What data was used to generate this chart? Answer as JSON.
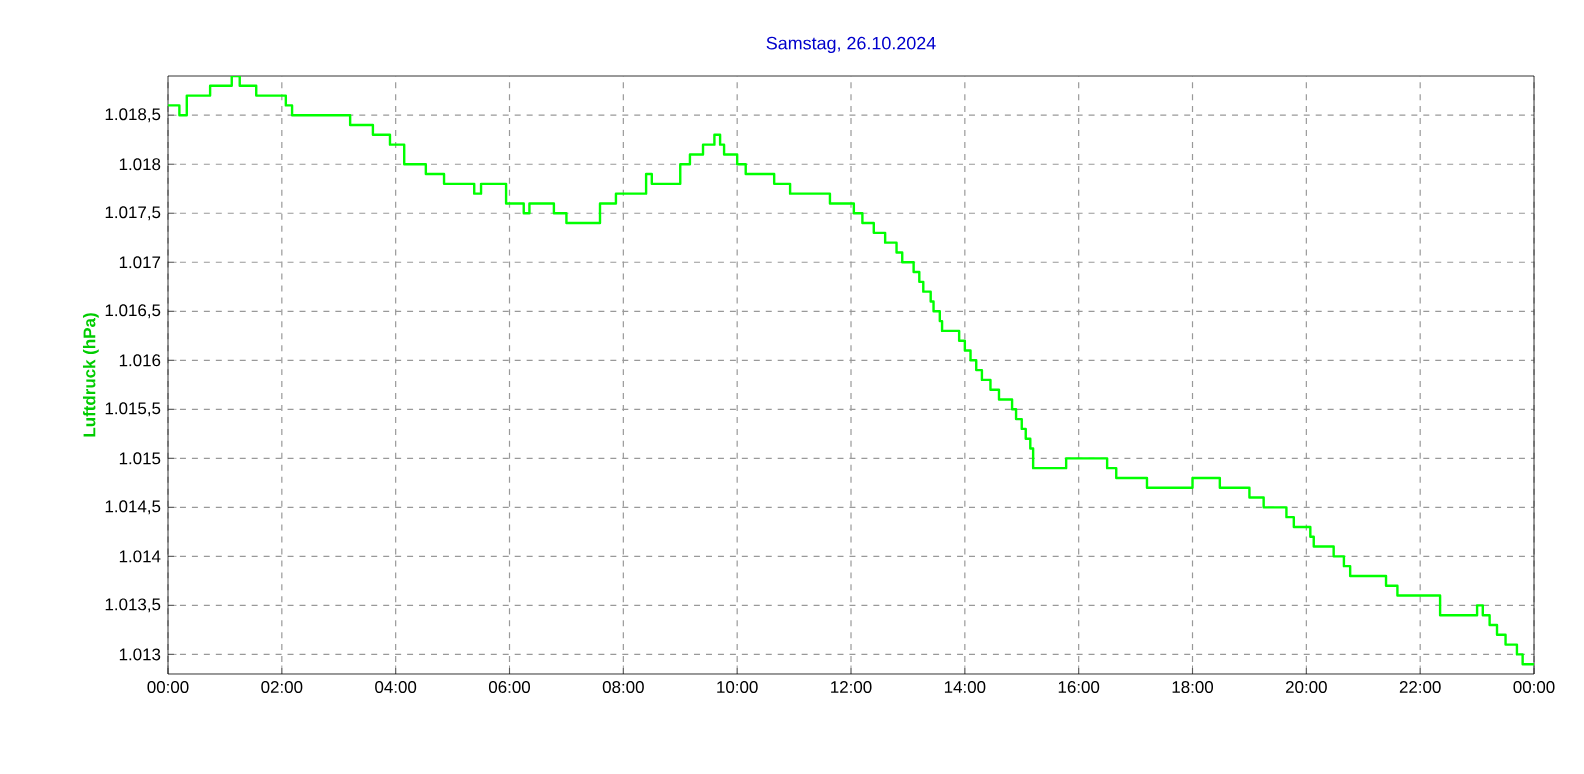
{
  "chart_data": {
    "type": "step",
    "title": "Samstag, 26.10.2024",
    "ylabel": "Luftdruck  (hPa)",
    "x": [
      0,
      0.2,
      0.33,
      0.74,
      1.12,
      1.26,
      1.55,
      2.07,
      2.18,
      3.2,
      3.6,
      3.9,
      4.15,
      4.53,
      4.85,
      5.38,
      5.5,
      5.73,
      5.94,
      6.25,
      6.35,
      6.78,
      7.0,
      7.59,
      7.87,
      8.4,
      8.5,
      9.0,
      9.17,
      9.4,
      9.6,
      9.7,
      9.77,
      10.0,
      10.15,
      10.65,
      10.93,
      11.63,
      12.05,
      12.2,
      12.4,
      12.6,
      12.8,
      12.9,
      13.1,
      13.2,
      13.27,
      13.4,
      13.45,
      13.56,
      13.6,
      13.9,
      14.0,
      14.1,
      14.2,
      14.3,
      14.45,
      14.6,
      14.83,
      14.9,
      15.0,
      15.07,
      15.15,
      15.2,
      15.78,
      16.5,
      16.66,
      17.2,
      18.0,
      18.48,
      19.0,
      19.25,
      19.65,
      19.78,
      20.07,
      20.13,
      20.48,
      20.66,
      20.77,
      21.4,
      21.6,
      22.35,
      23.0,
      23.1,
      23.22,
      23.35,
      23.5,
      23.7,
      23.8,
      24.0
    ],
    "series": [
      {
        "color": "#00ff00",
        "values": [
          1018.6,
          1018.5,
          1018.7,
          1018.8,
          1018.9,
          1018.8,
          1018.7,
          1018.6,
          1018.5,
          1018.4,
          1018.3,
          1018.2,
          1018.0,
          1017.9,
          1017.8,
          1017.7,
          1017.8,
          1017.8,
          1017.6,
          1017.5,
          1017.6,
          1017.5,
          1017.4,
          1017.6,
          1017.7,
          1017.9,
          1017.8,
          1018.0,
          1018.1,
          1018.2,
          1018.3,
          1018.2,
          1018.1,
          1018.0,
          1017.9,
          1017.8,
          1017.7,
          1017.6,
          1017.5,
          1017.4,
          1017.3,
          1017.2,
          1017.1,
          1017.0,
          1016.9,
          1016.8,
          1016.7,
          1016.6,
          1016.5,
          1016.4,
          1016.3,
          1016.2,
          1016.1,
          1016.0,
          1015.9,
          1015.8,
          1015.7,
          1015.6,
          1015.5,
          1015.4,
          1015.3,
          1015.2,
          1015.1,
          1014.9,
          1015.0,
          1014.9,
          1014.8,
          1014.7,
          1014.8,
          1014.7,
          1014.6,
          1014.5,
          1014.4,
          1014.3,
          1014.2,
          1014.1,
          1014.0,
          1013.9,
          1013.8,
          1013.7,
          1013.6,
          1013.4,
          1013.5,
          1013.4,
          1013.3,
          1013.2,
          1013.1,
          1013.0,
          1012.9,
          1012.9
        ]
      }
    ],
    "xlim": [
      0,
      24
    ],
    "xticks": [
      {
        "value": 0,
        "label": "00:00"
      },
      {
        "value": 2,
        "label": "02:00"
      },
      {
        "value": 4,
        "label": "04:00"
      },
      {
        "value": 6,
        "label": "06:00"
      },
      {
        "value": 8,
        "label": "08:00"
      },
      {
        "value": 10,
        "label": "10:00"
      },
      {
        "value": 12,
        "label": "12:00"
      },
      {
        "value": 14,
        "label": "14:00"
      },
      {
        "value": 16,
        "label": "16:00"
      },
      {
        "value": 18,
        "label": "18:00"
      },
      {
        "value": 20,
        "label": "20:00"
      },
      {
        "value": 22,
        "label": "22:00"
      },
      {
        "value": 24,
        "label": "00:00"
      }
    ],
    "ylim": [
      1012.8,
      1018.9
    ],
    "yticks": [
      {
        "value": 1013,
        "label": "1.013"
      },
      {
        "value": 1013.5,
        "label": "1.013,5"
      },
      {
        "value": 1014,
        "label": "1.014"
      },
      {
        "value": 1014.5,
        "label": "1.014,5"
      },
      {
        "value": 1015,
        "label": "1.015"
      },
      {
        "value": 1015.5,
        "label": "1.015,5"
      },
      {
        "value": 1016,
        "label": "1.016"
      },
      {
        "value": 1016.5,
        "label": "1.016,5"
      },
      {
        "value": 1017,
        "label": "1.017"
      },
      {
        "value": 1017.5,
        "label": "1.017,5"
      },
      {
        "value": 1018,
        "label": "1.018"
      },
      {
        "value": 1018.5,
        "label": "1.018,5"
      }
    ],
    "grid": true
  }
}
